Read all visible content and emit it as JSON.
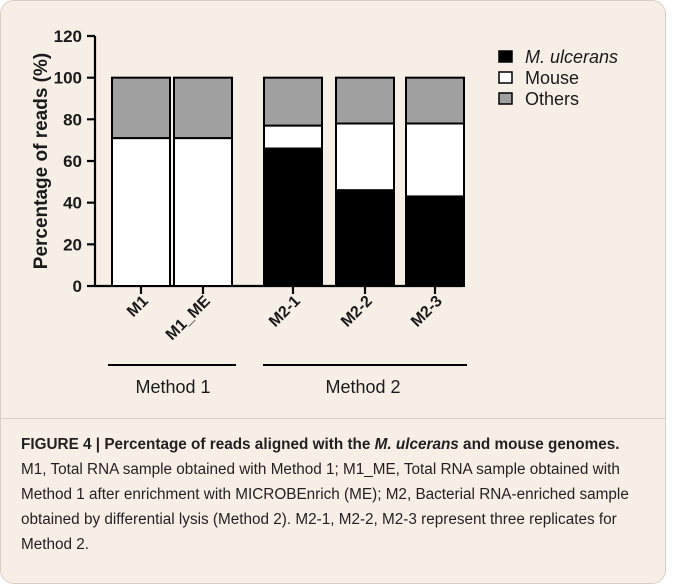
{
  "chart_data": {
    "type": "bar",
    "stacked": true,
    "categories": [
      "M1",
      "M1_ME",
      "M2-1",
      "M2-2",
      "M2-3"
    ],
    "series": [
      {
        "name": "M. ulcerans",
        "color": "#000000",
        "values": [
          0,
          0,
          66,
          46,
          43
        ]
      },
      {
        "name": "Mouse",
        "color": "#ffffff",
        "values": [
          71,
          71,
          11,
          32,
          35
        ]
      },
      {
        "name": "Others",
        "color": "#a0a0a0",
        "values": [
          29,
          29,
          23,
          22,
          22
        ]
      }
    ],
    "ylabel": "Percentage of reads (%)",
    "ylim": [
      0,
      120
    ],
    "yticks": [
      "0",
      "20",
      "40",
      "60",
      "80",
      "100",
      "120"
    ],
    "legend_position": "right",
    "groups": [
      {
        "label": "Method 1",
        "categories": [
          "M1",
          "M1_ME"
        ]
      },
      {
        "label": "Method 2",
        "categories": [
          "M2-1",
          "M2-2",
          "M2-3"
        ]
      }
    ]
  },
  "caption": {
    "title_prefix": "FIGURE 4 | Percentage of reads aligned with the ",
    "title_italic": "M. ulcerans",
    "title_suffix": " and mouse genomes.",
    "body": " M1, Total RNA sample obtained with Method 1; M1_ME, Total RNA sample obtained with Method 1 after enrichment with MICROBEnrich (ME); M2, Bacterial RNA-enriched sample obtained by differential lysis (Method 2). M2-1, M2-2, M2-3 represent three replicates for Method 2."
  }
}
